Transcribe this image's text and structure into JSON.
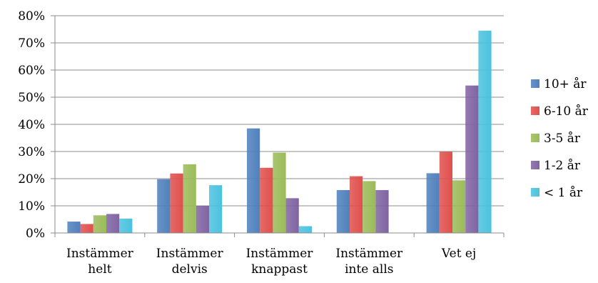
{
  "chart_data": {
    "type": "bar",
    "categories": [
      [
        "Instämmer",
        "helt"
      ],
      [
        "Instämmer",
        "delvis"
      ],
      [
        "Instämmer",
        "knappast"
      ],
      [
        "Instämmer",
        "inte alls"
      ],
      [
        "Vet ej"
      ]
    ],
    "series": [
      {
        "name": "10+ år",
        "color": "#4f81bd",
        "values": [
          4.2,
          19.8,
          38.5,
          15.8,
          22.0
        ]
      },
      {
        "name": "6-10 år",
        "color": "#e0504d",
        "values": [
          3.3,
          21.9,
          24.0,
          20.9,
          29.9
        ]
      },
      {
        "name": "3-5 år",
        "color": "#9bbb59",
        "values": [
          6.5,
          25.3,
          29.6,
          19.1,
          19.4
        ]
      },
      {
        "name": "1-2 år",
        "color": "#8064a2",
        "values": [
          7.0,
          10.0,
          12.8,
          15.8,
          54.3
        ]
      },
      {
        "name": "< 1 år",
        "color": "#4bc2df",
        "values": [
          5.3,
          17.6,
          2.5,
          null,
          74.5
        ]
      }
    ],
    "yticks": [
      "0%",
      "10%",
      "20%",
      "30%",
      "40%",
      "50%",
      "60%",
      "70%",
      "80%"
    ],
    "ylim": [
      0,
      80
    ],
    "grid": true,
    "legend_position": "right"
  }
}
